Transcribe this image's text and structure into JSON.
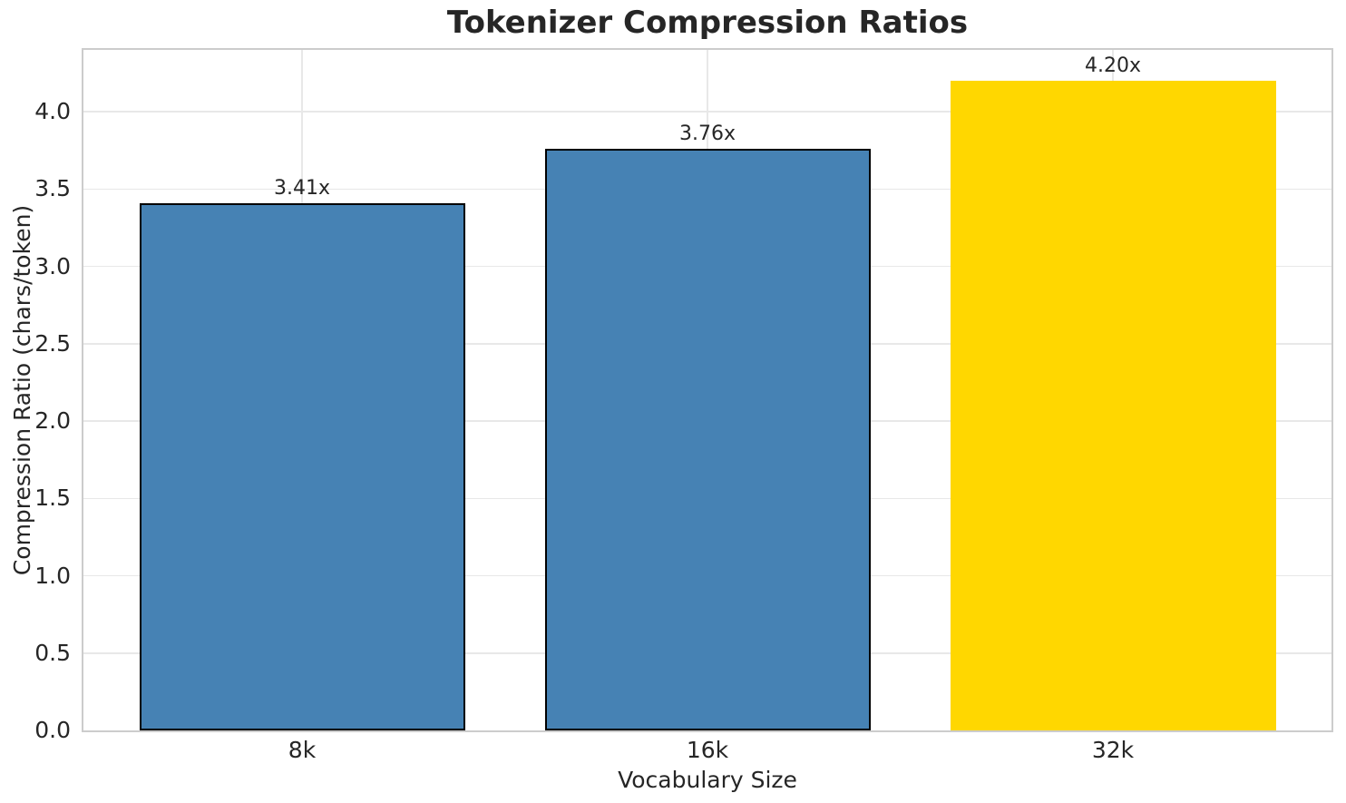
{
  "chart_data": {
    "type": "bar",
    "title": "Tokenizer Compression Ratios",
    "xlabel": "Vocabulary Size",
    "ylabel": "Compression Ratio (chars/token)",
    "categories": [
      "8k",
      "16k",
      "32k"
    ],
    "values": [
      3.41,
      3.76,
      4.2
    ],
    "bar_labels": [
      "3.41x",
      "3.76x",
      "4.20x"
    ],
    "bar_colors": [
      "#4682B4",
      "#4682B4",
      "#FFD700"
    ],
    "bar_edge_colors": [
      "#000000",
      "#000000",
      null
    ],
    "ylim": [
      0,
      4.4
    ],
    "yticks": [
      0,
      0.5,
      1,
      1.5,
      2,
      2.5,
      3,
      3.5,
      4
    ],
    "ytick_labels": [
      "0.0",
      "0.5",
      "1.0",
      "1.5",
      "2.0",
      "2.5",
      "3.0",
      "3.5",
      "4.0"
    ],
    "grid": true,
    "legend_position": "none"
  },
  "colors": {
    "figure_background": "#FFFFFF",
    "bar_default": "#4682B4",
    "bar_highlight": "#FFD700",
    "bar_edge": "#000000",
    "gridline": "#E8E8E8",
    "spine": "#CCCCCC",
    "text": "#262626"
  }
}
